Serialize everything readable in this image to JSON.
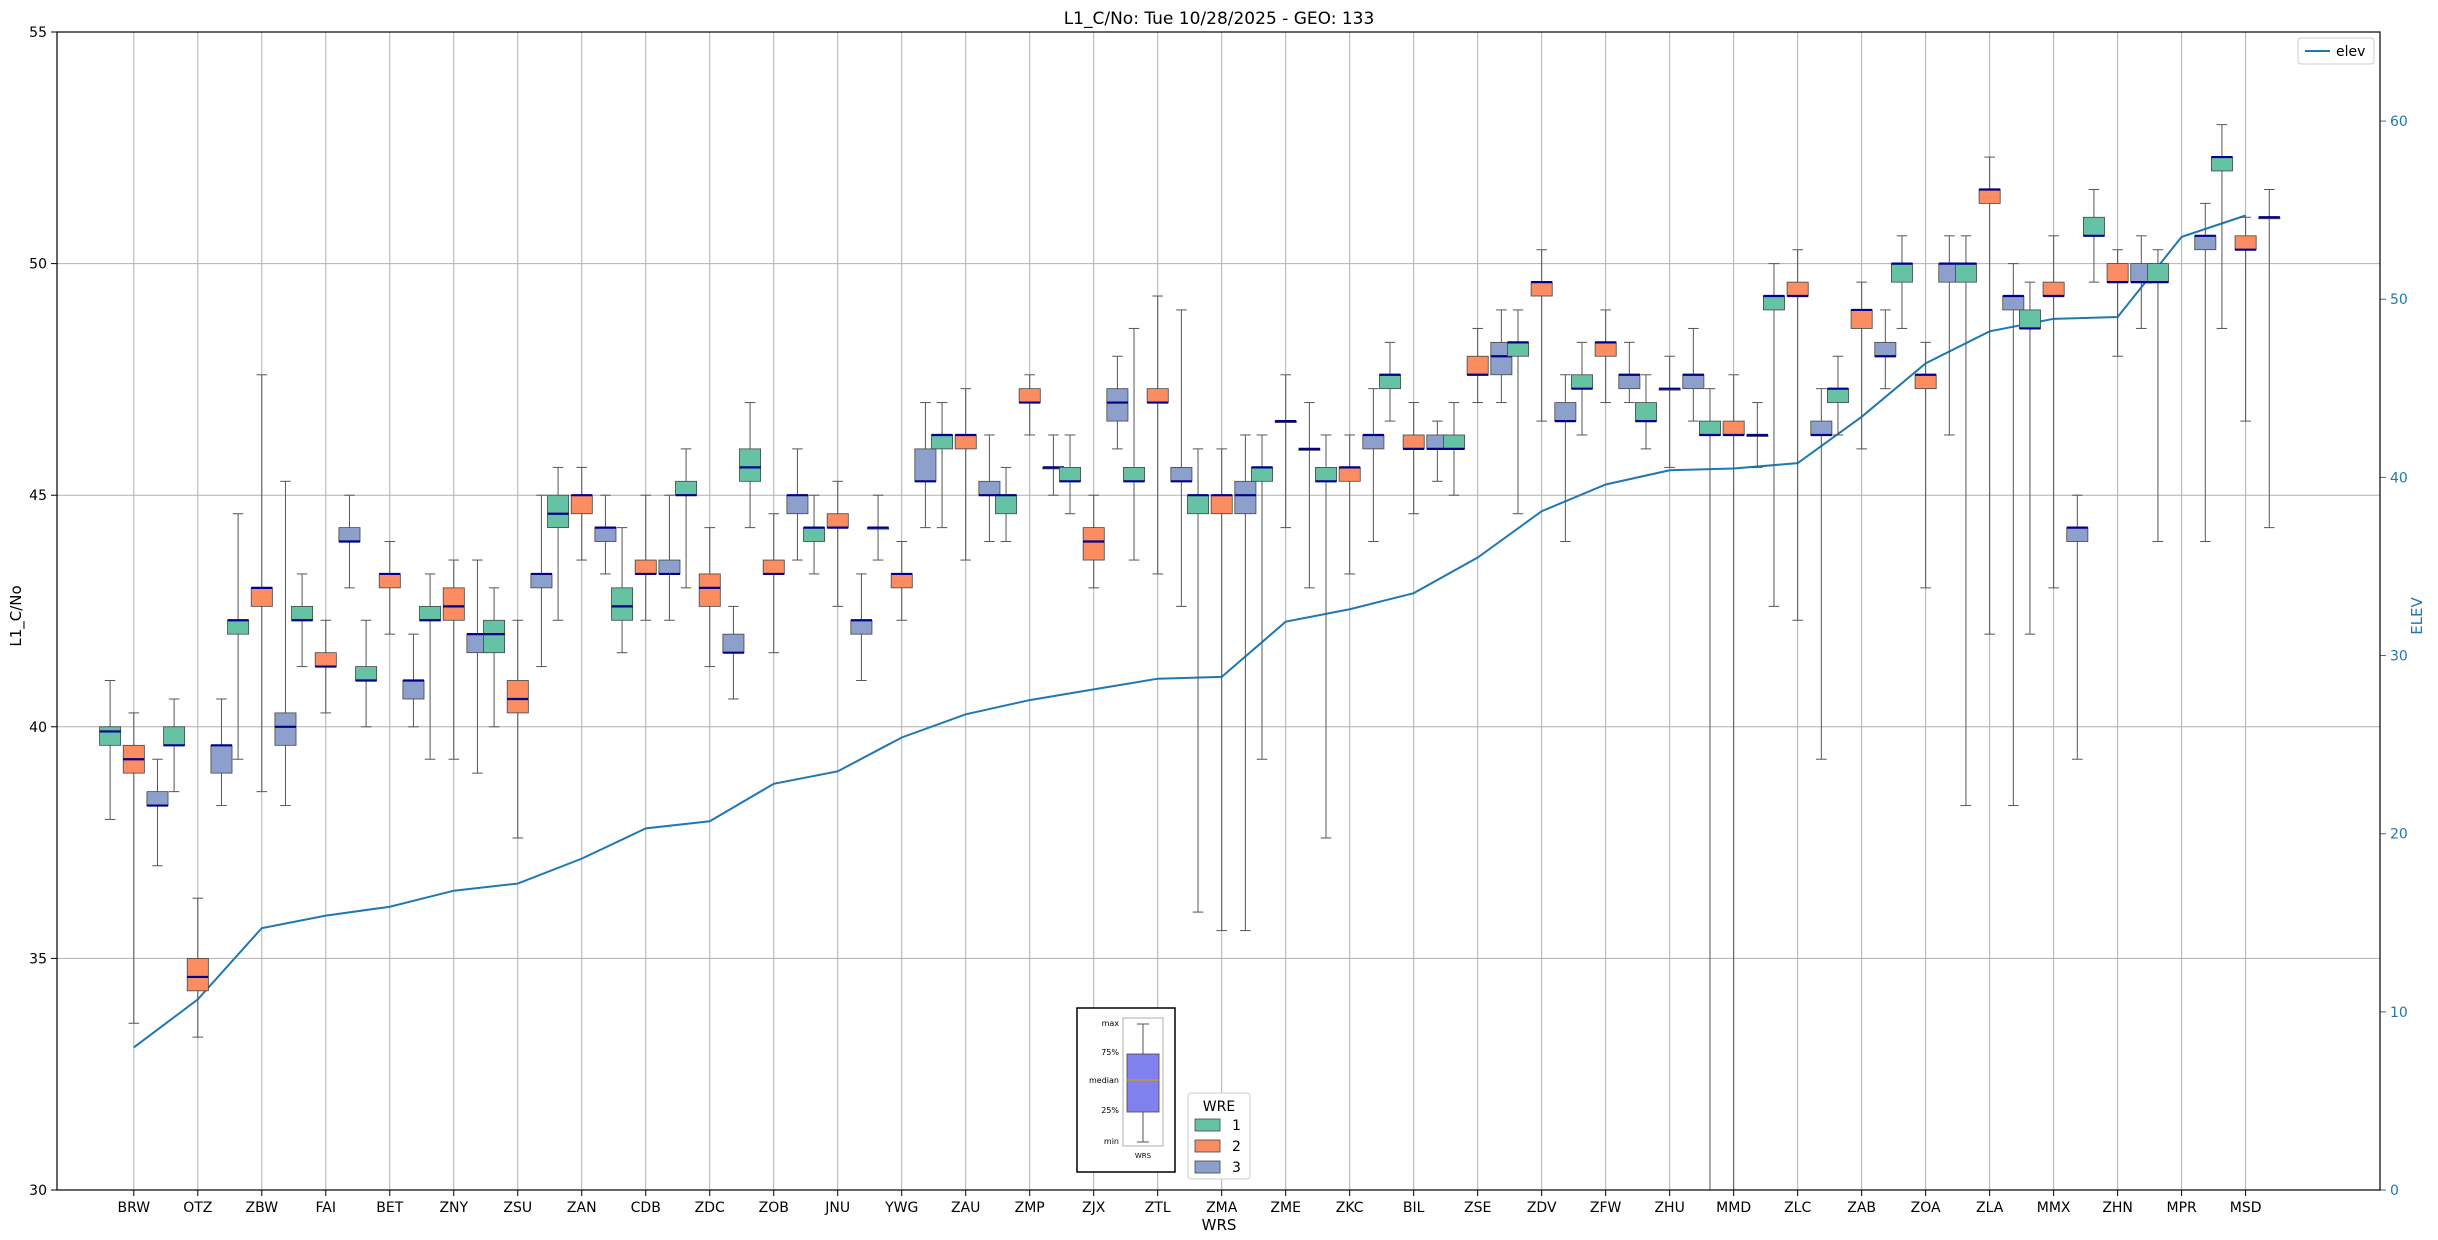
{
  "chart_data": {
    "type": "box",
    "title": "L1_C/No: Tue 10/28/2025 - GEO: 133",
    "xlabel": "WRS",
    "ylabel": "L1_C/No",
    "y2label": "ELEV",
    "ylim": [
      30,
      55
    ],
    "y2lim": [
      0,
      65
    ],
    "yticks": [
      30,
      35,
      40,
      45,
      50,
      55
    ],
    "y2ticks": [
      0,
      10,
      20,
      30,
      40,
      50,
      60
    ],
    "grid": true,
    "legend_line": {
      "label": "elev",
      "position": "top-right",
      "color": "#1f77b4"
    },
    "legend_wre": {
      "title": "WRE",
      "position": "bottom-center",
      "entries": [
        {
          "label": "1",
          "color": "#66c2a5"
        },
        {
          "label": "2",
          "color": "#fc8d62"
        },
        {
          "label": "3",
          "color": "#8da0cb"
        }
      ]
    },
    "key_inset": {
      "labels": [
        "max",
        "75%",
        "median",
        "25%",
        "min"
      ],
      "xlabel": "WRS"
    },
    "categories": [
      "BRW",
      "OTZ",
      "ZBW",
      "FAI",
      "BET",
      "ZNY",
      "ZSU",
      "ZAN",
      "CDB",
      "ZDC",
      "ZOB",
      "JNU",
      "YWG",
      "ZAU",
      "ZMP",
      "ZJX",
      "ZTL",
      "ZMA",
      "ZME",
      "ZKC",
      "BIL",
      "ZSE",
      "ZDV",
      "ZFW",
      "ZHU",
      "MMD",
      "ZLC",
      "ZAB",
      "ZOA",
      "ZLA",
      "MMX",
      "ZHN",
      "MPR",
      "MSD"
    ],
    "elev": [
      8,
      10.7,
      14.7,
      15.4,
      15.9,
      16.8,
      17.2,
      18.6,
      20.3,
      20.7,
      22.8,
      23.5,
      25.4,
      26.7,
      27.5,
      28.1,
      28.7,
      28.8,
      31.9,
      32.6,
      33.5,
      35.5,
      38.1,
      39.6,
      40.4,
      40.5,
      40.8,
      43.4,
      46.4,
      48.2,
      48.9,
      49.0,
      53.5,
      54.7
    ],
    "boxes": [
      [
        {
          "wre": 1,
          "min": 38,
          "q1": 39.6,
          "med": 39.9,
          "q3": 40,
          "max": 41
        },
        {
          "wre": 2,
          "min": 33.6,
          "q1": 39,
          "med": 39.3,
          "q3": 39.6,
          "max": 40.3
        },
        {
          "wre": 3,
          "min": 37,
          "q1": 38.3,
          "med": 38.3,
          "q3": 38.6,
          "max": 39.3
        }
      ],
      [
        {
          "wre": 1,
          "min": 38.6,
          "q1": 39.6,
          "med": 39.6,
          "q3": 40,
          "max": 40.6
        },
        {
          "wre": 2,
          "min": 33.3,
          "q1": 34.3,
          "med": 34.6,
          "q3": 35,
          "max": 36.3
        },
        {
          "wre": 3,
          "min": 38.3,
          "q1": 39,
          "med": 39.6,
          "q3": 39.6,
          "max": 40.6
        }
      ],
      [
        {
          "wre": 1,
          "min": 39.3,
          "q1": 42,
          "med": 42.3,
          "q3": 42.3,
          "max": 44.6
        },
        {
          "wre": 2,
          "min": 38.6,
          "q1": 42.6,
          "med": 43,
          "q3": 43,
          "max": 47.6
        },
        {
          "wre": 3,
          "min": 38.3,
          "q1": 39.6,
          "med": 40,
          "q3": 40.3,
          "max": 45.3
        }
      ],
      [
        {
          "wre": 1,
          "min": 41.3,
          "q1": 42.3,
          "med": 42.3,
          "q3": 42.6,
          "max": 43.3
        },
        {
          "wre": 2,
          "min": 40.3,
          "q1": 41.3,
          "med": 41.3,
          "q3": 41.6,
          "max": 42.3
        },
        {
          "wre": 3,
          "min": 43,
          "q1": 44,
          "med": 44,
          "q3": 44.3,
          "max": 45
        }
      ],
      [
        {
          "wre": 1,
          "min": 40,
          "q1": 41,
          "med": 41,
          "q3": 41.3,
          "max": 42.3
        },
        {
          "wre": 2,
          "min": 42,
          "q1": 43,
          "med": 43.3,
          "q3": 43.3,
          "max": 44
        },
        {
          "wre": 3,
          "min": 40,
          "q1": 40.6,
          "med": 41,
          "q3": 41,
          "max": 42
        }
      ],
      [
        {
          "wre": 1,
          "min": 39.3,
          "q1": 42.3,
          "med": 42.3,
          "q3": 42.6,
          "max": 43.3
        },
        {
          "wre": 2,
          "min": 39.3,
          "q1": 42.3,
          "med": 42.6,
          "q3": 43,
          "max": 43.6
        },
        {
          "wre": 3,
          "min": 39,
          "q1": 41.6,
          "med": 42,
          "q3": 42,
          "max": 43.6
        }
      ],
      [
        {
          "wre": 1,
          "min": 40,
          "q1": 41.6,
          "med": 42,
          "q3": 42.3,
          "max": 43
        },
        {
          "wre": 2,
          "min": 37.6,
          "q1": 40.3,
          "med": 40.6,
          "q3": 41,
          "max": 42.3
        },
        {
          "wre": 3,
          "min": 41.3,
          "q1": 43,
          "med": 43.3,
          "q3": 43.3,
          "max": 45
        }
      ],
      [
        {
          "wre": 1,
          "min": 42.3,
          "q1": 44.3,
          "med": 44.6,
          "q3": 45,
          "max": 45.6
        },
        {
          "wre": 2,
          "min": 43.6,
          "q1": 44.6,
          "med": 45,
          "q3": 45,
          "max": 45.6
        },
        {
          "wre": 3,
          "min": 43.3,
          "q1": 44,
          "med": 44.3,
          "q3": 44.3,
          "max": 45
        }
      ],
      [
        {
          "wre": 1,
          "min": 41.6,
          "q1": 42.3,
          "med": 42.6,
          "q3": 43,
          "max": 44.3
        },
        {
          "wre": 2,
          "min": 42.3,
          "q1": 43.3,
          "med": 43.3,
          "q3": 43.6,
          "max": 45
        },
        {
          "wre": 3,
          "min": 42.3,
          "q1": 43.3,
          "med": 43.3,
          "q3": 43.6,
          "max": 45
        }
      ],
      [
        {
          "wre": 1,
          "min": 43,
          "q1": 45,
          "med": 45,
          "q3": 45.3,
          "max": 46
        },
        {
          "wre": 2,
          "min": 41.3,
          "q1": 42.6,
          "med": 43,
          "q3": 43.3,
          "max": 44.3
        },
        {
          "wre": 3,
          "min": 40.6,
          "q1": 41.6,
          "med": 41.6,
          "q3": 42,
          "max": 42.6
        }
      ],
      [
        {
          "wre": 1,
          "min": 44.3,
          "q1": 45.3,
          "med": 45.6,
          "q3": 46,
          "max": 47
        },
        {
          "wre": 2,
          "min": 41.6,
          "q1": 43.3,
          "med": 43.3,
          "q3": 43.6,
          "max": 44.6
        },
        {
          "wre": 3,
          "min": 43.6,
          "q1": 44.6,
          "med": 45,
          "q3": 45,
          "max": 46
        }
      ],
      [
        {
          "wre": 1,
          "min": 43.3,
          "q1": 44,
          "med": 44.3,
          "q3": 44.3,
          "max": 45
        },
        {
          "wre": 2,
          "min": 42.6,
          "q1": 44.3,
          "med": 44.3,
          "q3": 44.6,
          "max": 45.3
        },
        {
          "wre": 3,
          "min": 41,
          "q1": 42,
          "med": 42.3,
          "q3": 42.3,
          "max": 43.3
        }
      ],
      [
        {
          "wre": 1,
          "min": 43.6,
          "q1": 44.3,
          "med": 44.3,
          "q3": 44.3,
          "max": 45
        },
        {
          "wre": 2,
          "min": 42.3,
          "q1": 43,
          "med": 43.3,
          "q3": 43.3,
          "max": 44
        },
        {
          "wre": 3,
          "min": 44.3,
          "q1": 45.3,
          "med": 45.3,
          "q3": 46,
          "max": 47
        }
      ],
      [
        {
          "wre": 1,
          "min": 44.3,
          "q1": 46,
          "med": 46.3,
          "q3": 46.3,
          "max": 47
        },
        {
          "wre": 2,
          "min": 43.6,
          "q1": 46,
          "med": 46.3,
          "q3": 46.3,
          "max": 47.3
        },
        {
          "wre": 3,
          "min": 44,
          "q1": 45,
          "med": 45,
          "q3": 45.3,
          "max": 46.3
        }
      ],
      [
        {
          "wre": 1,
          "min": 44,
          "q1": 44.6,
          "med": 45,
          "q3": 45,
          "max": 45.6
        },
        {
          "wre": 2,
          "min": 46.3,
          "q1": 47,
          "med": 47,
          "q3": 47.3,
          "max": 47.6
        },
        {
          "wre": 3,
          "min": 45,
          "q1": 45.6,
          "med": 45.6,
          "q3": 45.6,
          "max": 46.3
        }
      ],
      [
        {
          "wre": 1,
          "min": 44.6,
          "q1": 45.3,
          "med": 45.3,
          "q3": 45.6,
          "max": 46.3
        },
        {
          "wre": 2,
          "min": 43,
          "q1": 43.6,
          "med": 44,
          "q3": 44.3,
          "max": 45
        },
        {
          "wre": 3,
          "min": 46,
          "q1": 46.6,
          "med": 47,
          "q3": 47.3,
          "max": 48
        }
      ],
      [
        {
          "wre": 1,
          "min": 43.6,
          "q1": 45.3,
          "med": 45.3,
          "q3": 45.6,
          "max": 48.6
        },
        {
          "wre": 2,
          "min": 43.3,
          "q1": 47,
          "med": 47,
          "q3": 47.3,
          "max": 49.3
        },
        {
          "wre": 3,
          "min": 42.6,
          "q1": 45.3,
          "med": 45.3,
          "q3": 45.6,
          "max": 49
        }
      ],
      [
        {
          "wre": 1,
          "min": 36,
          "q1": 44.6,
          "med": 45,
          "q3": 45,
          "max": 46
        },
        {
          "wre": 2,
          "min": 35.6,
          "q1": 44.6,
          "med": 45,
          "q3": 45,
          "max": 46
        },
        {
          "wre": 3,
          "min": 35.6,
          "q1": 44.6,
          "med": 45,
          "q3": 45.3,
          "max": 46.3
        }
      ],
      [
        {
          "wre": 1,
          "min": 39.3,
          "q1": 45.3,
          "med": 45.6,
          "q3": 45.6,
          "max": 46.3
        },
        {
          "wre": 2,
          "min": 44.3,
          "q1": 46.6,
          "med": 46.6,
          "q3": 46.6,
          "max": 47.6
        },
        {
          "wre": 3,
          "min": 43,
          "q1": 46,
          "med": 46,
          "q3": 46,
          "max": 47
        }
      ],
      [
        {
          "wre": 1,
          "min": 37.6,
          "q1": 45.3,
          "med": 45.3,
          "q3": 45.6,
          "max": 46.3
        },
        {
          "wre": 2,
          "min": 43.3,
          "q1": 45.3,
          "med": 45.6,
          "q3": 45.6,
          "max": 46.3
        },
        {
          "wre": 3,
          "min": 44,
          "q1": 46,
          "med": 46.3,
          "q3": 46.3,
          "max": 47.3
        }
      ],
      [
        {
          "wre": 1,
          "min": 46.6,
          "q1": 47.3,
          "med": 47.6,
          "q3": 47.6,
          "max": 48.3
        },
        {
          "wre": 2,
          "min": 44.6,
          "q1": 46,
          "med": 46,
          "q3": 46.3,
          "max": 47
        },
        {
          "wre": 3,
          "min": 45.3,
          "q1": 46,
          "med": 46,
          "q3": 46.3,
          "max": 46.6
        }
      ],
      [
        {
          "wre": 1,
          "min": 45,
          "q1": 46,
          "med": 46,
          "q3": 46.3,
          "max": 47
        },
        {
          "wre": 2,
          "min": 47,
          "q1": 47.6,
          "med": 47.6,
          "q3": 48,
          "max": 48.6
        },
        {
          "wre": 3,
          "min": 47,
          "q1": 47.6,
          "med": 48,
          "q3": 48.3,
          "max": 49
        }
      ],
      [
        {
          "wre": 1,
          "min": 44.6,
          "q1": 48,
          "med": 48.3,
          "q3": 48.3,
          "max": 49
        },
        {
          "wre": 2,
          "min": 46.6,
          "q1": 49.3,
          "med": 49.6,
          "q3": 49.6,
          "max": 50.3
        },
        {
          "wre": 3,
          "min": 44,
          "q1": 46.6,
          "med": 46.6,
          "q3": 47,
          "max": 47.6
        }
      ],
      [
        {
          "wre": 1,
          "min": 46.3,
          "q1": 47.3,
          "med": 47.3,
          "q3": 47.6,
          "max": 48.3
        },
        {
          "wre": 2,
          "min": 47,
          "q1": 48,
          "med": 48.3,
          "q3": 48.3,
          "max": 49
        },
        {
          "wre": 3,
          "min": 47,
          "q1": 47.3,
          "med": 47.6,
          "q3": 47.6,
          "max": 48.3
        }
      ],
      [
        {
          "wre": 1,
          "min": 46,
          "q1": 46.6,
          "med": 46.6,
          "q3": 47,
          "max": 47.6
        },
        {
          "wre": 2,
          "min": 45.6,
          "q1": 47.3,
          "med": 47.3,
          "q3": 47.3,
          "max": 48
        },
        {
          "wre": 3,
          "min": 46.6,
          "q1": 47.3,
          "med": 47.6,
          "q3": 47.6,
          "max": 48.6
        }
      ],
      [
        {
          "wre": 1,
          "min": 30,
          "q1": 46.3,
          "med": 46.3,
          "q3": 46.6,
          "max": 47.3
        },
        {
          "wre": 2,
          "min": 30,
          "q1": 46.3,
          "med": 46.3,
          "q3": 46.6,
          "max": 47.6
        },
        {
          "wre": 3,
          "min": 45.6,
          "q1": 46.3,
          "med": 46.3,
          "q3": 46.3,
          "max": 47
        }
      ],
      [
        {
          "wre": 1,
          "min": 42.6,
          "q1": 49,
          "med": 49.3,
          "q3": 49.3,
          "max": 50
        },
        {
          "wre": 2,
          "min": 42.3,
          "q1": 49.3,
          "med": 49.3,
          "q3": 49.6,
          "max": 50.3
        },
        {
          "wre": 3,
          "min": 39.3,
          "q1": 46.3,
          "med": 46.3,
          "q3": 46.6,
          "max": 47.3
        }
      ],
      [
        {
          "wre": 1,
          "min": 46.3,
          "q1": 47,
          "med": 47.3,
          "q3": 47.3,
          "max": 48
        },
        {
          "wre": 2,
          "min": 46,
          "q1": 48.6,
          "med": 49,
          "q3": 49,
          "max": 49.6
        },
        {
          "wre": 3,
          "min": 47.3,
          "q1": 48,
          "med": 48,
          "q3": 48.3,
          "max": 49
        }
      ],
      [
        {
          "wre": 1,
          "min": 48.6,
          "q1": 49.6,
          "med": 50,
          "q3": 50,
          "max": 50.6
        },
        {
          "wre": 2,
          "min": 43,
          "q1": 47.3,
          "med": 47.6,
          "q3": 47.6,
          "max": 48.3
        },
        {
          "wre": 3,
          "min": 46.3,
          "q1": 49.6,
          "med": 50,
          "q3": 50,
          "max": 50.6
        }
      ],
      [
        {
          "wre": 1,
          "min": 38.3,
          "q1": 49.6,
          "med": 50,
          "q3": 50,
          "max": 50.6
        },
        {
          "wre": 2,
          "min": 42,
          "q1": 51.3,
          "med": 51.6,
          "q3": 51.6,
          "max": 52.3
        },
        {
          "wre": 3,
          "min": 38.3,
          "q1": 49,
          "med": 49.3,
          "q3": 49.3,
          "max": 50
        }
      ],
      [
        {
          "wre": 1,
          "min": 42,
          "q1": 48.6,
          "med": 48.6,
          "q3": 49,
          "max": 49.6
        },
        {
          "wre": 2,
          "min": 43,
          "q1": 49.3,
          "med": 49.3,
          "q3": 49.6,
          "max": 50.6
        },
        {
          "wre": 3,
          "min": 39.3,
          "q1": 44,
          "med": 44.3,
          "q3": 44.3,
          "max": 45
        }
      ],
      [
        {
          "wre": 1,
          "min": 49.6,
          "q1": 50.6,
          "med": 50.6,
          "q3": 51,
          "max": 51.6
        },
        {
          "wre": 2,
          "min": 48,
          "q1": 49.6,
          "med": 49.6,
          "q3": 50,
          "max": 50.3
        },
        {
          "wre": 3,
          "min": 48.6,
          "q1": 49.6,
          "med": 49.6,
          "q3": 50,
          "max": 50.6
        }
      ],
      [
        {
          "wre": 1,
          "min": 44,
          "q1": 49.6,
          "med": 49.6,
          "q3": 50,
          "max": 50.3
        },
        {
          "wre": 2,
          "min": null,
          "q1": null,
          "med": null,
          "q3": null,
          "max": null
        },
        {
          "wre": 3,
          "min": 44,
          "q1": 50.3,
          "med": 50.6,
          "q3": 50.6,
          "max": 51.3
        }
      ],
      [
        {
          "wre": 1,
          "min": 48.6,
          "q1": 52,
          "med": 52.3,
          "q3": 52.3,
          "max": 53
        },
        {
          "wre": 2,
          "min": 46.6,
          "q1": 50.3,
          "med": 50.3,
          "q3": 50.6,
          "max": 51
        },
        {
          "wre": 3,
          "min": 44.3,
          "q1": 51,
          "med": 51,
          "q3": 51,
          "max": 51.6
        }
      ]
    ]
  }
}
